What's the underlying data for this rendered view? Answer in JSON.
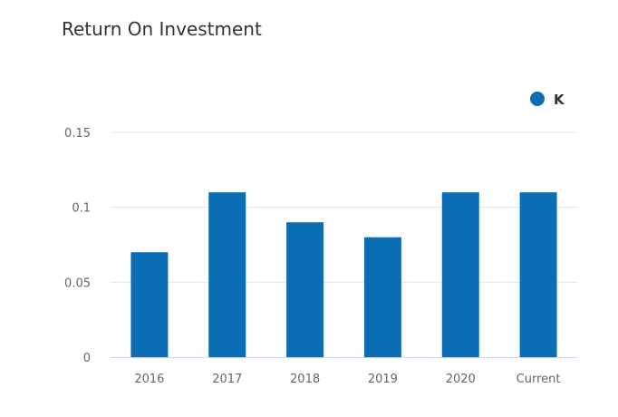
{
  "chart_data": {
    "type": "bar",
    "title": "Return On Investment",
    "categories": [
      "2016",
      "2017",
      "2018",
      "2019",
      "2020",
      "Current"
    ],
    "series": [
      {
        "name": "K",
        "values": [
          0.07,
          0.11,
          0.09,
          0.08,
          0.11,
          0.11
        ],
        "color": "#0b6eb4"
      }
    ],
    "yticks": [
      {
        "value": 0,
        "label": "0"
      },
      {
        "value": 0.05,
        "label": "0.05"
      },
      {
        "value": 0.1,
        "label": "0.1"
      },
      {
        "value": 0.15,
        "label": "0.15"
      }
    ],
    "ylim": [
      0,
      0.15
    ],
    "grid": true,
    "legend_position": "top-right",
    "gridline_color": "#e6e6e6",
    "axis_color": "#ccd6eb"
  }
}
